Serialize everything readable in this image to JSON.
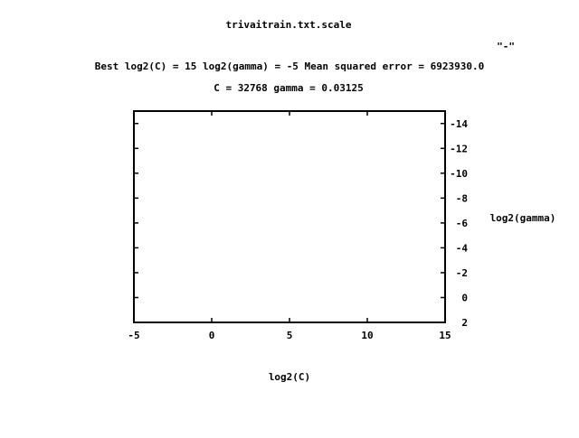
{
  "chart_data": {
    "type": "contour",
    "title": "trivaitrain.txt.scale",
    "subtitle_lines": [
      "Best log2(C) = 15  log2(gamma) = -5  Mean squared error = 6923930.0",
      "C = 32768  gamma = 0.03125"
    ],
    "legend_key": "\"-\"",
    "legend_position": "top-right",
    "xlabel": "log2(C)",
    "ylabel": "log2(gamma)",
    "xlim": [
      -5,
      15
    ],
    "ylim": [
      2,
      -15
    ],
    "x_ticks": [
      -5,
      0,
      5,
      10,
      15
    ],
    "y_ticks": [
      2,
      0,
      -2,
      -4,
      -6,
      -8,
      -10,
      -12,
      -14
    ],
    "y_axis_side": "right",
    "series": [],
    "grid": false
  }
}
